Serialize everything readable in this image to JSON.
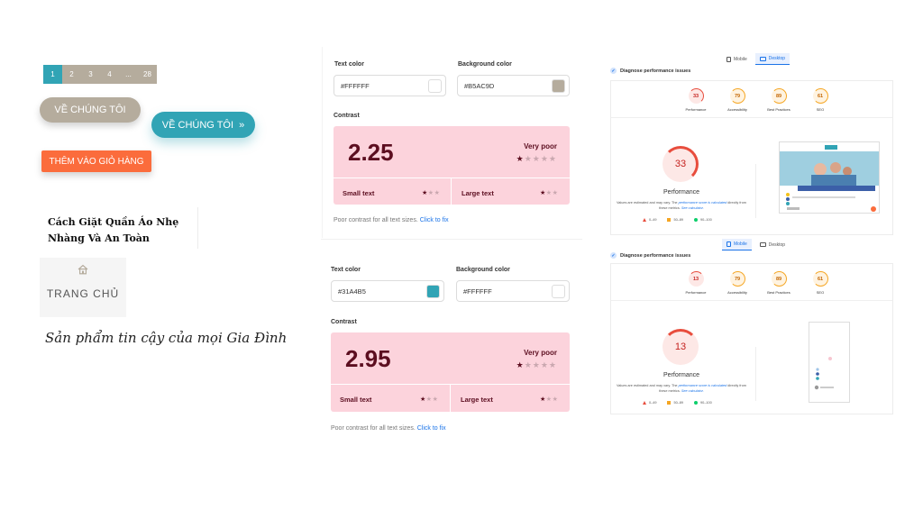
{
  "pagination": {
    "pages": [
      "1",
      "2",
      "3",
      "4",
      "...",
      "28"
    ],
    "active": "1"
  },
  "buttons": {
    "about_us_1": "VỀ CHÚNG TÔI",
    "about_us_2": "VỀ CHÚNG TÔI",
    "about_us_2_icon": "»",
    "add_to_cart": "THÊM VÀO GIỎ HÀNG"
  },
  "article": {
    "title": "Cách Giặt Quần Áo Nhẹ Nhàng Và An Toàn"
  },
  "home_tile": {
    "icon": "home-icon",
    "label": "TRANG CHỦ"
  },
  "tagline": "Sản phẩm tin cậy của mọi Gia Đình",
  "contrast_checkers": [
    {
      "text_color_label": "Text color",
      "text_color": "#FFFFFF",
      "bg_color_label": "Background color",
      "bg_color": "#B5AC9D",
      "contrast_label": "Contrast",
      "ratio": "2.25",
      "verdict": "Very poor",
      "rating_stars": 1,
      "small_text_label": "Small text",
      "small_text_stars": 1,
      "large_text_label": "Large text",
      "large_text_stars": 1,
      "note": "Poor contrast for all text sizes.",
      "note_link": "Click to fix"
    },
    {
      "text_color_label": "Text color",
      "text_color": "#31A4B5",
      "bg_color_label": "Background color",
      "bg_color": "#FFFFFF",
      "contrast_label": "Contrast",
      "ratio": "2.95",
      "verdict": "Very poor",
      "rating_stars": 1,
      "small_text_label": "Small text",
      "small_text_stars": 1,
      "large_text_label": "Large text",
      "large_text_stars": 1,
      "note": "Poor contrast for all text sizes.",
      "note_link": "Click to fix"
    }
  ],
  "lighthouse": [
    {
      "tabs": {
        "mobile": "Mobile",
        "desktop": "Desktop",
        "active": "desktop"
      },
      "diagnose_label": "Diagnose performance issues",
      "scores": [
        {
          "value": "33",
          "label": "Performance",
          "level": "red"
        },
        {
          "value": "79",
          "label": "Accessibility",
          "level": "orange"
        },
        {
          "value": "89",
          "label": "Best Practices",
          "level": "orange"
        },
        {
          "value": "61",
          "label": "SEO",
          "level": "orange"
        }
      ],
      "main_score": "33",
      "main_label": "Performance",
      "note_prefix": "Values are estimated and may vary. The",
      "note_link1": "performance score is calculated",
      "note_mid": "directly from these metrics.",
      "note_link2": "See calculator.",
      "legend": [
        "0–49",
        "50–89",
        "90–100"
      ]
    },
    {
      "tabs": {
        "mobile": "Mobile",
        "desktop": "Desktop",
        "active": "mobile"
      },
      "diagnose_label": "Diagnose performance issues",
      "scores": [
        {
          "value": "13",
          "label": "Performance",
          "level": "red"
        },
        {
          "value": "79",
          "label": "Accessibility",
          "level": "orange"
        },
        {
          "value": "89",
          "label": "Best Practices",
          "level": "orange"
        },
        {
          "value": "61",
          "label": "SEO",
          "level": "orange"
        }
      ],
      "main_score": "13",
      "main_label": "Performance",
      "note_prefix": "Values are estimated and may vary. The",
      "note_link1": "performance score is calculated",
      "note_mid": "directly from these metrics.",
      "note_link2": "See calculator.",
      "legend": [
        "0–49",
        "50–89",
        "90–100"
      ]
    }
  ],
  "colors": {
    "beige": "#b5ac9d",
    "teal": "#31a4b5",
    "orange": "#fb6c3c",
    "poor_red": "#5c0e20",
    "poor_bg": "#fcd3dc"
  }
}
